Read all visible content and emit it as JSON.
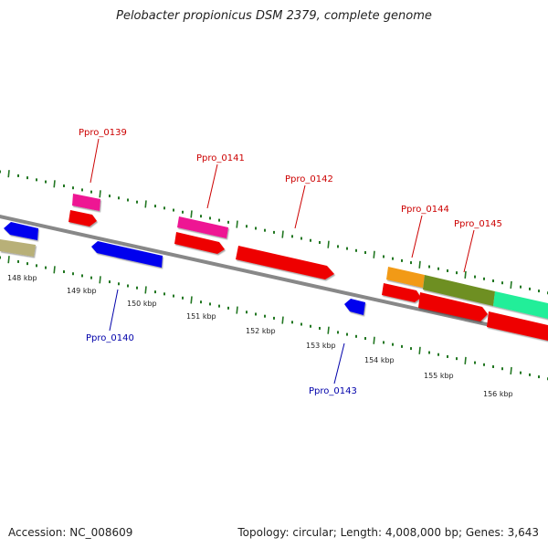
{
  "title": "Pelobacter propionicus DSM 2379, complete genome",
  "footer": {
    "accession": "Accession: NC_008609",
    "topology": "Topology: circular; Length: 4,008,000 bp; Genes: 3,643"
  },
  "scale_labels": [
    "148 kbp",
    "149 kbp",
    "150 kbp",
    "151 kbp",
    "152 kbp",
    "153 kbp",
    "154 kbp",
    "155 kbp",
    "156 kbp"
  ],
  "gene_labels": {
    "ppro_0139": "Ppro_0139",
    "ppro_0140": "Ppro_0140",
    "ppro_0141": "Ppro_0141",
    "ppro_0142": "Ppro_0142",
    "ppro_0143": "Ppro_0143",
    "ppro_0144": "Ppro_0144",
    "ppro_0145": "Ppro_0145"
  },
  "colors": {
    "cds": "#ee0000",
    "forward": "#ee0099",
    "reverse": "#0000ee",
    "tick": "#227722",
    "backbone": "#777777",
    "label_forward": "#cc0000",
    "label_reverse": "#0000aa"
  }
}
